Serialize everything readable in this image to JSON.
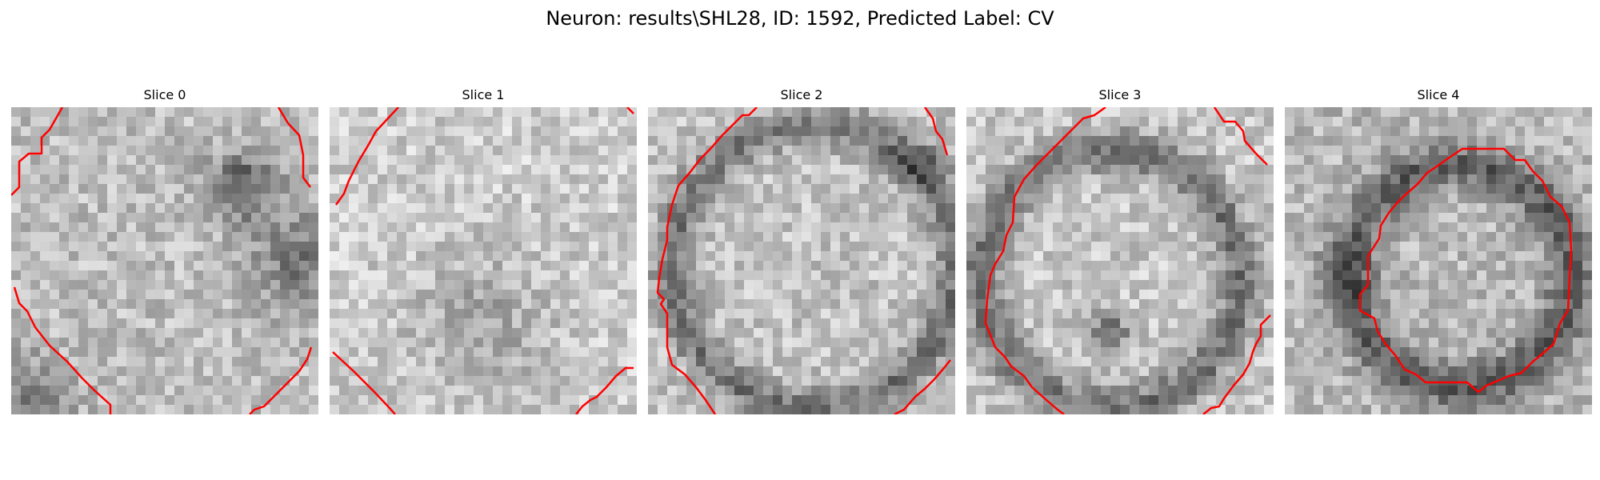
{
  "figure": {
    "title": "Neuron: results\\SHL28, ID: 1592, Predicted Label: CV"
  },
  "slices": [
    {
      "label": "Slice 0",
      "blob_x": 0.28,
      "blob_y": 0.45
    },
    {
      "label": "Slice 1",
      "blob_x": 0.5,
      "blob_y": 0.5
    },
    {
      "label": "Slice 2",
      "blob_x": 0.54,
      "blob_y": 0.52
    },
    {
      "label": "Slice 3",
      "blob_x": 0.47,
      "blob_y": 0.56
    },
    {
      "label": "Slice 4",
      "blob_x": 0.57,
      "blob_y": 0.55
    }
  ],
  "colors": {
    "contour": "#ff0000",
    "background": "#ffffff",
    "text": "#000000"
  }
}
